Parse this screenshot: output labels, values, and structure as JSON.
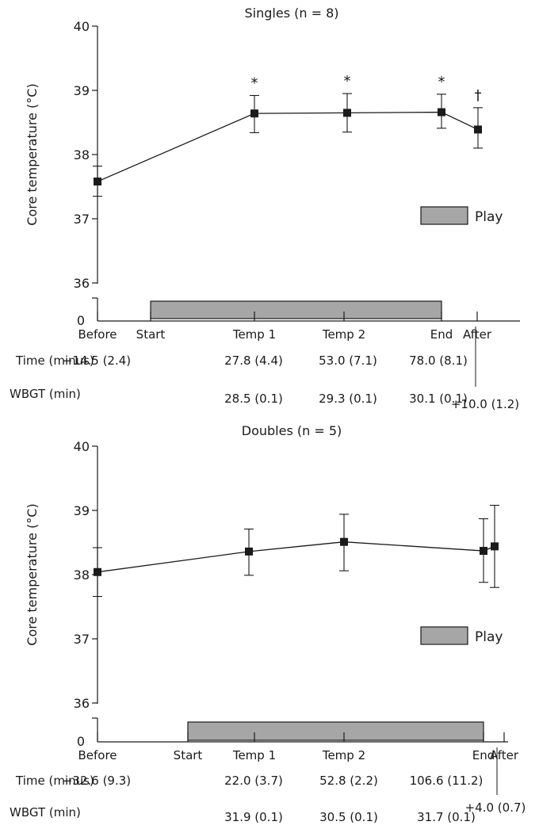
{
  "chart_data": [
    {
      "type": "line",
      "title": "Singles (n = 8)",
      "ylabel": "Core temperature (°C)",
      "ylim": [
        36,
        40
      ],
      "yticks": [
        "36",
        "37",
        "38",
        "39",
        "40"
      ],
      "y_break_label": "0",
      "categories": [
        "Before",
        "Start",
        "Temp 1",
        "Temp 2",
        "End",
        "After"
      ],
      "series": [
        {
          "points": [
            {
              "x": "Before",
              "y": 37.58,
              "err_low": 37.35,
              "err_high": 37.82
            },
            {
              "x": "Temp 1",
              "y": 38.64,
              "err_low": 38.34,
              "err_high": 38.92,
              "annotation": "*"
            },
            {
              "x": "Temp 2",
              "y": 38.65,
              "err_low": 38.35,
              "err_high": 38.95,
              "annotation": "*"
            },
            {
              "x": "End",
              "y": 38.66,
              "err_low": 38.41,
              "err_high": 38.94,
              "annotation": "*"
            },
            {
              "x": "After",
              "y": 38.39,
              "err_low": 38.1,
              "err_high": 38.73,
              "annotation": "†"
            }
          ]
        }
      ],
      "play_period": {
        "from": "Start",
        "to": "End"
      },
      "legend": {
        "label": "Play",
        "position": "right"
      },
      "time_row": {
        "label": "Time (minus)",
        "values": [
          "−14.5 (2.4)",
          "27.8 (4.4)",
          "53.0 (7.1)",
          "78.0 (8.1)",
          "+10.0 (1.2)"
        ]
      },
      "wbgt_row": {
        "label": "WBGT (min)",
        "values": [
          "28.5 (0.1)",
          "29.3 (0.1)",
          "30.1 (0.1)"
        ]
      }
    },
    {
      "type": "line",
      "title": "Doubles (n = 5)",
      "ylabel": "Core temperature (°C)",
      "ylim": [
        36,
        40
      ],
      "yticks": [
        "36",
        "37",
        "38",
        "39",
        "40"
      ],
      "y_break_label": "0",
      "categories": [
        "Before",
        "Start",
        "Temp 1",
        "Temp 2",
        "End",
        "After"
      ],
      "series": [
        {
          "points": [
            {
              "x": "Before",
              "y": 38.04,
              "err_low": 37.66,
              "err_high": 38.42
            },
            {
              "x": "Temp 1",
              "y": 38.36,
              "err_low": 37.99,
              "err_high": 38.71
            },
            {
              "x": "Temp 2",
              "y": 38.51,
              "err_low": 38.06,
              "err_high": 38.94
            },
            {
              "x": "End",
              "y": 38.37,
              "err_low": 37.88,
              "err_high": 38.87
            },
            {
              "x": "After",
              "y": 38.44,
              "err_low": 37.8,
              "err_high": 39.08
            }
          ]
        }
      ],
      "play_period": {
        "from": "Start",
        "to": "End"
      },
      "legend": {
        "label": "Play",
        "position": "right"
      },
      "time_row": {
        "label": "Time (minus)",
        "values": [
          "−32.6 (9.3)",
          "22.0 (3.7)",
          "52.8 (2.2)",
          "106.6 (11.2)",
          "+4.0 (0.7)"
        ]
      },
      "wbgt_row": {
        "label": "WBGT (min)",
        "values": [
          "31.9 (0.1)",
          "30.5 (0.1)",
          "31.7 (0.1)"
        ]
      }
    }
  ],
  "colors": {
    "ink": "#1a1a1a",
    "play_bar": "#a6a6a6"
  }
}
